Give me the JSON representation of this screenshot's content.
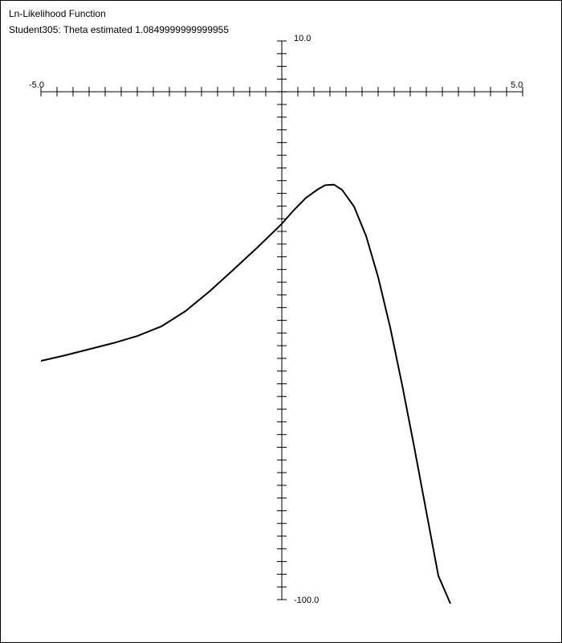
{
  "window": {
    "title": "Ln-Likelihood Function",
    "subtitle": "Student305: Theta estimated 1.0849999999999955"
  },
  "chart_data": {
    "type": "line",
    "title": "Ln-Likelihood Function",
    "subtitle": "Student305: Theta estimated 1.0849999999999955",
    "xlim": [
      -5.0,
      5.0
    ],
    "ylim": [
      -100.0,
      10.0
    ],
    "x_tick_step": 0.333,
    "y_tick_step": 2.5,
    "tick_labels": {
      "x_min": "-5.0",
      "x_max": "5.0",
      "y_max": "10.0",
      "y_min": "-100.0"
    },
    "axis_color": "#000000",
    "line_color": "#000000",
    "grid": false,
    "series": [
      {
        "x": [
          -5.0,
          -4.5,
          -4.0,
          -3.5,
          -3.0,
          -2.5,
          -2.0,
          -1.5,
          -1.0,
          -0.5,
          0.0,
          0.25,
          0.5,
          0.75,
          0.9,
          1.085,
          1.25,
          1.5,
          1.75,
          2.0,
          2.25,
          2.5,
          2.75,
          3.0,
          3.25,
          3.5
        ],
        "y": [
          -53.0,
          -51.9,
          -50.7,
          -49.5,
          -48.1,
          -46.2,
          -43.2,
          -39.3,
          -35.0,
          -30.6,
          -26.0,
          -23.3,
          -20.9,
          -19.2,
          -18.4,
          -18.3,
          -19.3,
          -22.6,
          -28.4,
          -36.5,
          -46.4,
          -57.8,
          -70.0,
          -82.7,
          -95.3,
          -101.5
        ]
      }
    ]
  }
}
